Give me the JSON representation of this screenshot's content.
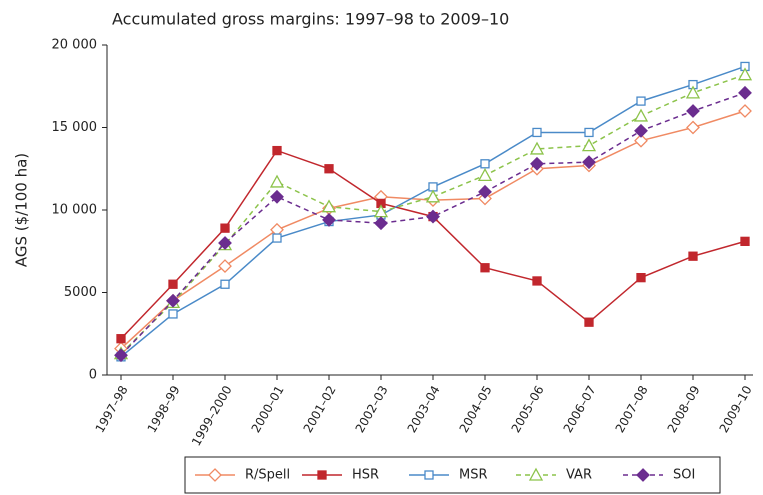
{
  "chart_data": {
    "type": "line",
    "title": "Accumulated gross margins: 1997–98 to 2009–10",
    "y_label": "AGS ($/100 ha)",
    "categories": [
      "1997–98",
      "1998–99",
      "1999–2000",
      "2000–01",
      "2001–02",
      "2002–03",
      "2003–04",
      "2004–05",
      "2005–06",
      "2006–07",
      "2007–08",
      "2008–09",
      "2009–10"
    ],
    "ylim": [
      0,
      20000
    ],
    "yticks": [
      0,
      5000,
      {
        "value": 10000,
        "label": "10 000"
      },
      {
        "value": 15000,
        "label": "15 000"
      },
      {
        "value": 20000,
        "label": "20 000"
      }
    ],
    "legend": "bottom",
    "series": [
      {
        "name": "R/Spell",
        "color": "#f08a63",
        "marker": "diamond",
        "filled": false,
        "dashed": false,
        "values": [
          1600,
          4500,
          6600,
          8800,
          10100,
          10800,
          10600,
          10700,
          12500,
          12700,
          14200,
          15000,
          16000
        ]
      },
      {
        "name": "HSR",
        "color": "#c1272d",
        "marker": "square",
        "filled": true,
        "dashed": false,
        "values": [
          2200,
          5500,
          8900,
          13600,
          12500,
          10400,
          9600,
          6500,
          5700,
          3200,
          5900,
          7200,
          8100
        ]
      },
      {
        "name": "MSR",
        "color": "#4a8ac8",
        "marker": "square",
        "filled": false,
        "dashed": false,
        "values": [
          1100,
          3700,
          5500,
          8300,
          9300,
          9700,
          11400,
          12800,
          14700,
          14700,
          16600,
          17600,
          18700
        ]
      },
      {
        "name": "VAR",
        "color": "#8cc34a",
        "marker": "triangle",
        "filled": false,
        "dashed": true,
        "values": [
          1300,
          4400,
          7900,
          11700,
          10200,
          9900,
          10800,
          12100,
          13700,
          13900,
          15700,
          17100,
          18200
        ]
      },
      {
        "name": "SOI",
        "color": "#6b2d8f",
        "marker": "diamond",
        "filled": true,
        "dashed": true,
        "values": [
          1200,
          4500,
          8000,
          10800,
          9400,
          9200,
          9600,
          11100,
          12800,
          12900,
          14800,
          16000,
          17100
        ]
      }
    ]
  }
}
